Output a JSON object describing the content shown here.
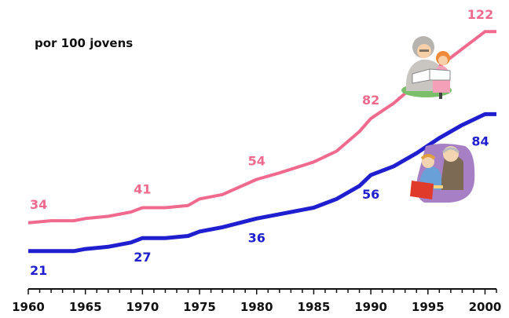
{
  "chart_data": {
    "type": "line",
    "subtitle": "por 100 jovens",
    "x_ticks": [
      1960,
      1965,
      1970,
      1975,
      1980,
      1985,
      1990,
      1995,
      2000
    ],
    "xlim": [
      1960,
      2001
    ],
    "ylim": [
      0,
      130
    ],
    "series": [
      {
        "color": "#f06a8e",
        "points": [
          [
            1960,
            34
          ],
          [
            1962,
            35
          ],
          [
            1964,
            35
          ],
          [
            1965,
            36
          ],
          [
            1967,
            37
          ],
          [
            1969,
            39
          ],
          [
            1970,
            41
          ],
          [
            1972,
            41
          ],
          [
            1974,
            42
          ],
          [
            1975,
            45
          ],
          [
            1977,
            47
          ],
          [
            1980,
            54
          ],
          [
            1982,
            57
          ],
          [
            1985,
            62
          ],
          [
            1987,
            67
          ],
          [
            1989,
            76
          ],
          [
            1990,
            82
          ],
          [
            1992,
            89
          ],
          [
            1994,
            98
          ],
          [
            1996,
            106
          ],
          [
            1998,
            114
          ],
          [
            2000,
            122
          ],
          [
            2001,
            122
          ]
        ],
        "labels": [
          {
            "x": 1960,
            "value": "34"
          },
          {
            "x": 1970,
            "value": "41"
          },
          {
            "x": 1980,
            "value": "54"
          },
          {
            "x": 1990,
            "value": "82"
          },
          {
            "x": 2000,
            "value": "122"
          }
        ]
      },
      {
        "color": "#1f1fd0",
        "points": [
          [
            1960,
            21
          ],
          [
            1962,
            21
          ],
          [
            1964,
            21
          ],
          [
            1965,
            22
          ],
          [
            1967,
            23
          ],
          [
            1969,
            25
          ],
          [
            1970,
            27
          ],
          [
            1972,
            27
          ],
          [
            1974,
            28
          ],
          [
            1975,
            30
          ],
          [
            1977,
            32
          ],
          [
            1980,
            36
          ],
          [
            1982,
            38
          ],
          [
            1985,
            41
          ],
          [
            1987,
            45
          ],
          [
            1989,
            51
          ],
          [
            1990,
            56
          ],
          [
            1992,
            60
          ],
          [
            1994,
            66
          ],
          [
            1996,
            73
          ],
          [
            1998,
            79
          ],
          [
            2000,
            84
          ],
          [
            2001,
            84
          ]
        ],
        "labels": [
          {
            "x": 1960,
            "value": "21"
          },
          {
            "x": 1970,
            "value": "27"
          },
          {
            "x": 1980,
            "value": "36"
          },
          {
            "x": 1990,
            "value": "56"
          },
          {
            "x": 2000,
            "value": "84"
          }
        ]
      }
    ],
    "grid": false,
    "legend": "none"
  },
  "icons": {
    "top": "grandmother-reading-to-girl-icon",
    "bottom": "grandfather-reading-to-boy-icon"
  }
}
